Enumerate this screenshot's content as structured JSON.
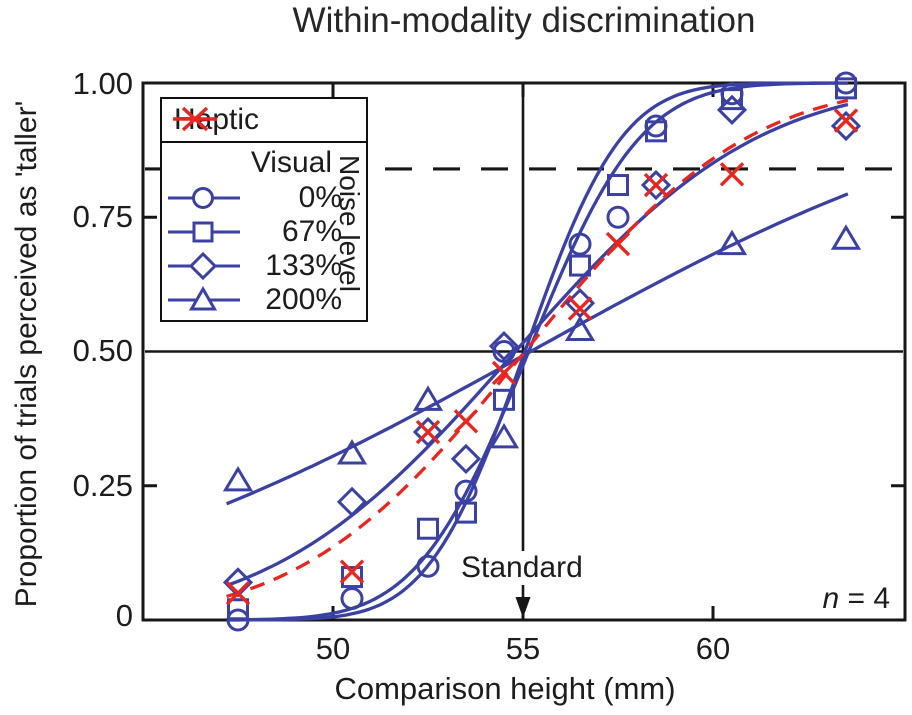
{
  "title": "Within-modality discrimination",
  "axes": {
    "x": {
      "label": "Comparison height (mm)",
      "tick_labels": [
        "50",
        "55",
        "60"
      ]
    },
    "y": {
      "label": "Proportion of trials perceived as 'taller'",
      "tick_labels": [
        "0",
        "0.25",
        "0.50",
        "0.75",
        "1.00"
      ]
    }
  },
  "annotations": {
    "standard_label": "Standard",
    "n_italic": "n",
    "n_rest": " = 4"
  },
  "legend": {
    "haptic_label": "Haptic",
    "visual_label": "Visual",
    "noise_label": "Noise level",
    "rows": [
      {
        "label": "0%",
        "marker": "circle"
      },
      {
        "label": "67%",
        "marker": "square"
      },
      {
        "label": "133%",
        "marker": "diamond"
      },
      {
        "label": "200%",
        "marker": "triangle"
      }
    ]
  },
  "colors": {
    "visual_blue": "#3a41a3",
    "haptic_red": "#e8261f",
    "axis_black": "#161616"
  },
  "chart_data": {
    "type": "line",
    "title": "Within-modality discrimination",
    "xlabel": "Comparison height (mm)",
    "ylabel": "Proportion of trials perceived as 'taller'",
    "xlim": [
      45,
      65
    ],
    "ylim": [
      0,
      1
    ],
    "x_ticks": [
      50,
      55,
      60
    ],
    "y_ticks": [
      0,
      0.25,
      0.5,
      0.75,
      1
    ],
    "legend_position": "upper-left",
    "curve_x_range": [
      47.2,
      63.6
    ],
    "annotations": {
      "threshold_line_y": 0.84,
      "pse_line_y": 0.5,
      "standard_x": 55,
      "n": 4
    },
    "series": [
      {
        "name": "Visual 0% noise",
        "marker": "circle",
        "color": "#3a41a3",
        "line_style": "solid",
        "fit_mu": 55.05,
        "fit_sigma": 2.0,
        "points": [
          [
            47.5,
            0.0
          ],
          [
            50.5,
            0.04
          ],
          [
            52.5,
            0.1
          ],
          [
            53.5,
            0.24
          ],
          [
            54.5,
            0.5
          ],
          [
            56.5,
            0.7
          ],
          [
            57.5,
            0.75
          ],
          [
            58.5,
            0.92
          ],
          [
            60.5,
            0.98
          ],
          [
            63.5,
            1.0
          ]
        ]
      },
      {
        "name": "Visual 67% noise",
        "marker": "square",
        "color": "#3a41a3",
        "line_style": "solid",
        "fit_mu": 55.15,
        "fit_sigma": 2.3,
        "points": [
          [
            47.5,
            0.02
          ],
          [
            50.5,
            0.08
          ],
          [
            52.5,
            0.17
          ],
          [
            53.5,
            0.2
          ],
          [
            54.5,
            0.41
          ],
          [
            56.5,
            0.66
          ],
          [
            57.5,
            0.81
          ],
          [
            58.5,
            0.91
          ],
          [
            60.5,
            0.97
          ],
          [
            63.5,
            0.99
          ]
        ]
      },
      {
        "name": "Visual 133% noise",
        "marker": "diamond",
        "color": "#3a41a3",
        "line_style": "solid",
        "fit_mu": 54.8,
        "fit_sigma": 5.0,
        "points": [
          [
            47.5,
            0.07
          ],
          [
            50.5,
            0.22
          ],
          [
            52.5,
            0.35
          ],
          [
            53.5,
            0.3
          ],
          [
            54.5,
            0.51
          ],
          [
            56.5,
            0.59
          ],
          [
            58.5,
            0.81
          ],
          [
            60.5,
            0.95
          ],
          [
            63.5,
            0.92
          ]
        ]
      },
      {
        "name": "Visual 200% noise",
        "marker": "triangle",
        "color": "#3a41a3",
        "line_style": "solid",
        "fit_mu": 55.2,
        "fit_sigma": 10.2,
        "points": [
          [
            47.5,
            0.26
          ],
          [
            50.5,
            0.31
          ],
          [
            52.5,
            0.41
          ],
          [
            54.5,
            0.34
          ],
          [
            56.5,
            0.54
          ],
          [
            60.5,
            0.7
          ],
          [
            63.5,
            0.71
          ]
        ]
      },
      {
        "name": "Haptic",
        "marker": "x",
        "color": "#e8261f",
        "line_style": "dashed",
        "fit_mu": 55.05,
        "fit_sigma": 4.6,
        "points": [
          [
            47.5,
            0.05
          ],
          [
            50.5,
            0.09
          ],
          [
            52.5,
            0.35
          ],
          [
            53.5,
            0.37
          ],
          [
            54.5,
            0.46
          ],
          [
            56.5,
            0.58
          ],
          [
            57.5,
            0.7
          ],
          [
            58.5,
            0.81
          ],
          [
            60.5,
            0.83
          ],
          [
            63.5,
            0.93
          ]
        ]
      }
    ]
  }
}
